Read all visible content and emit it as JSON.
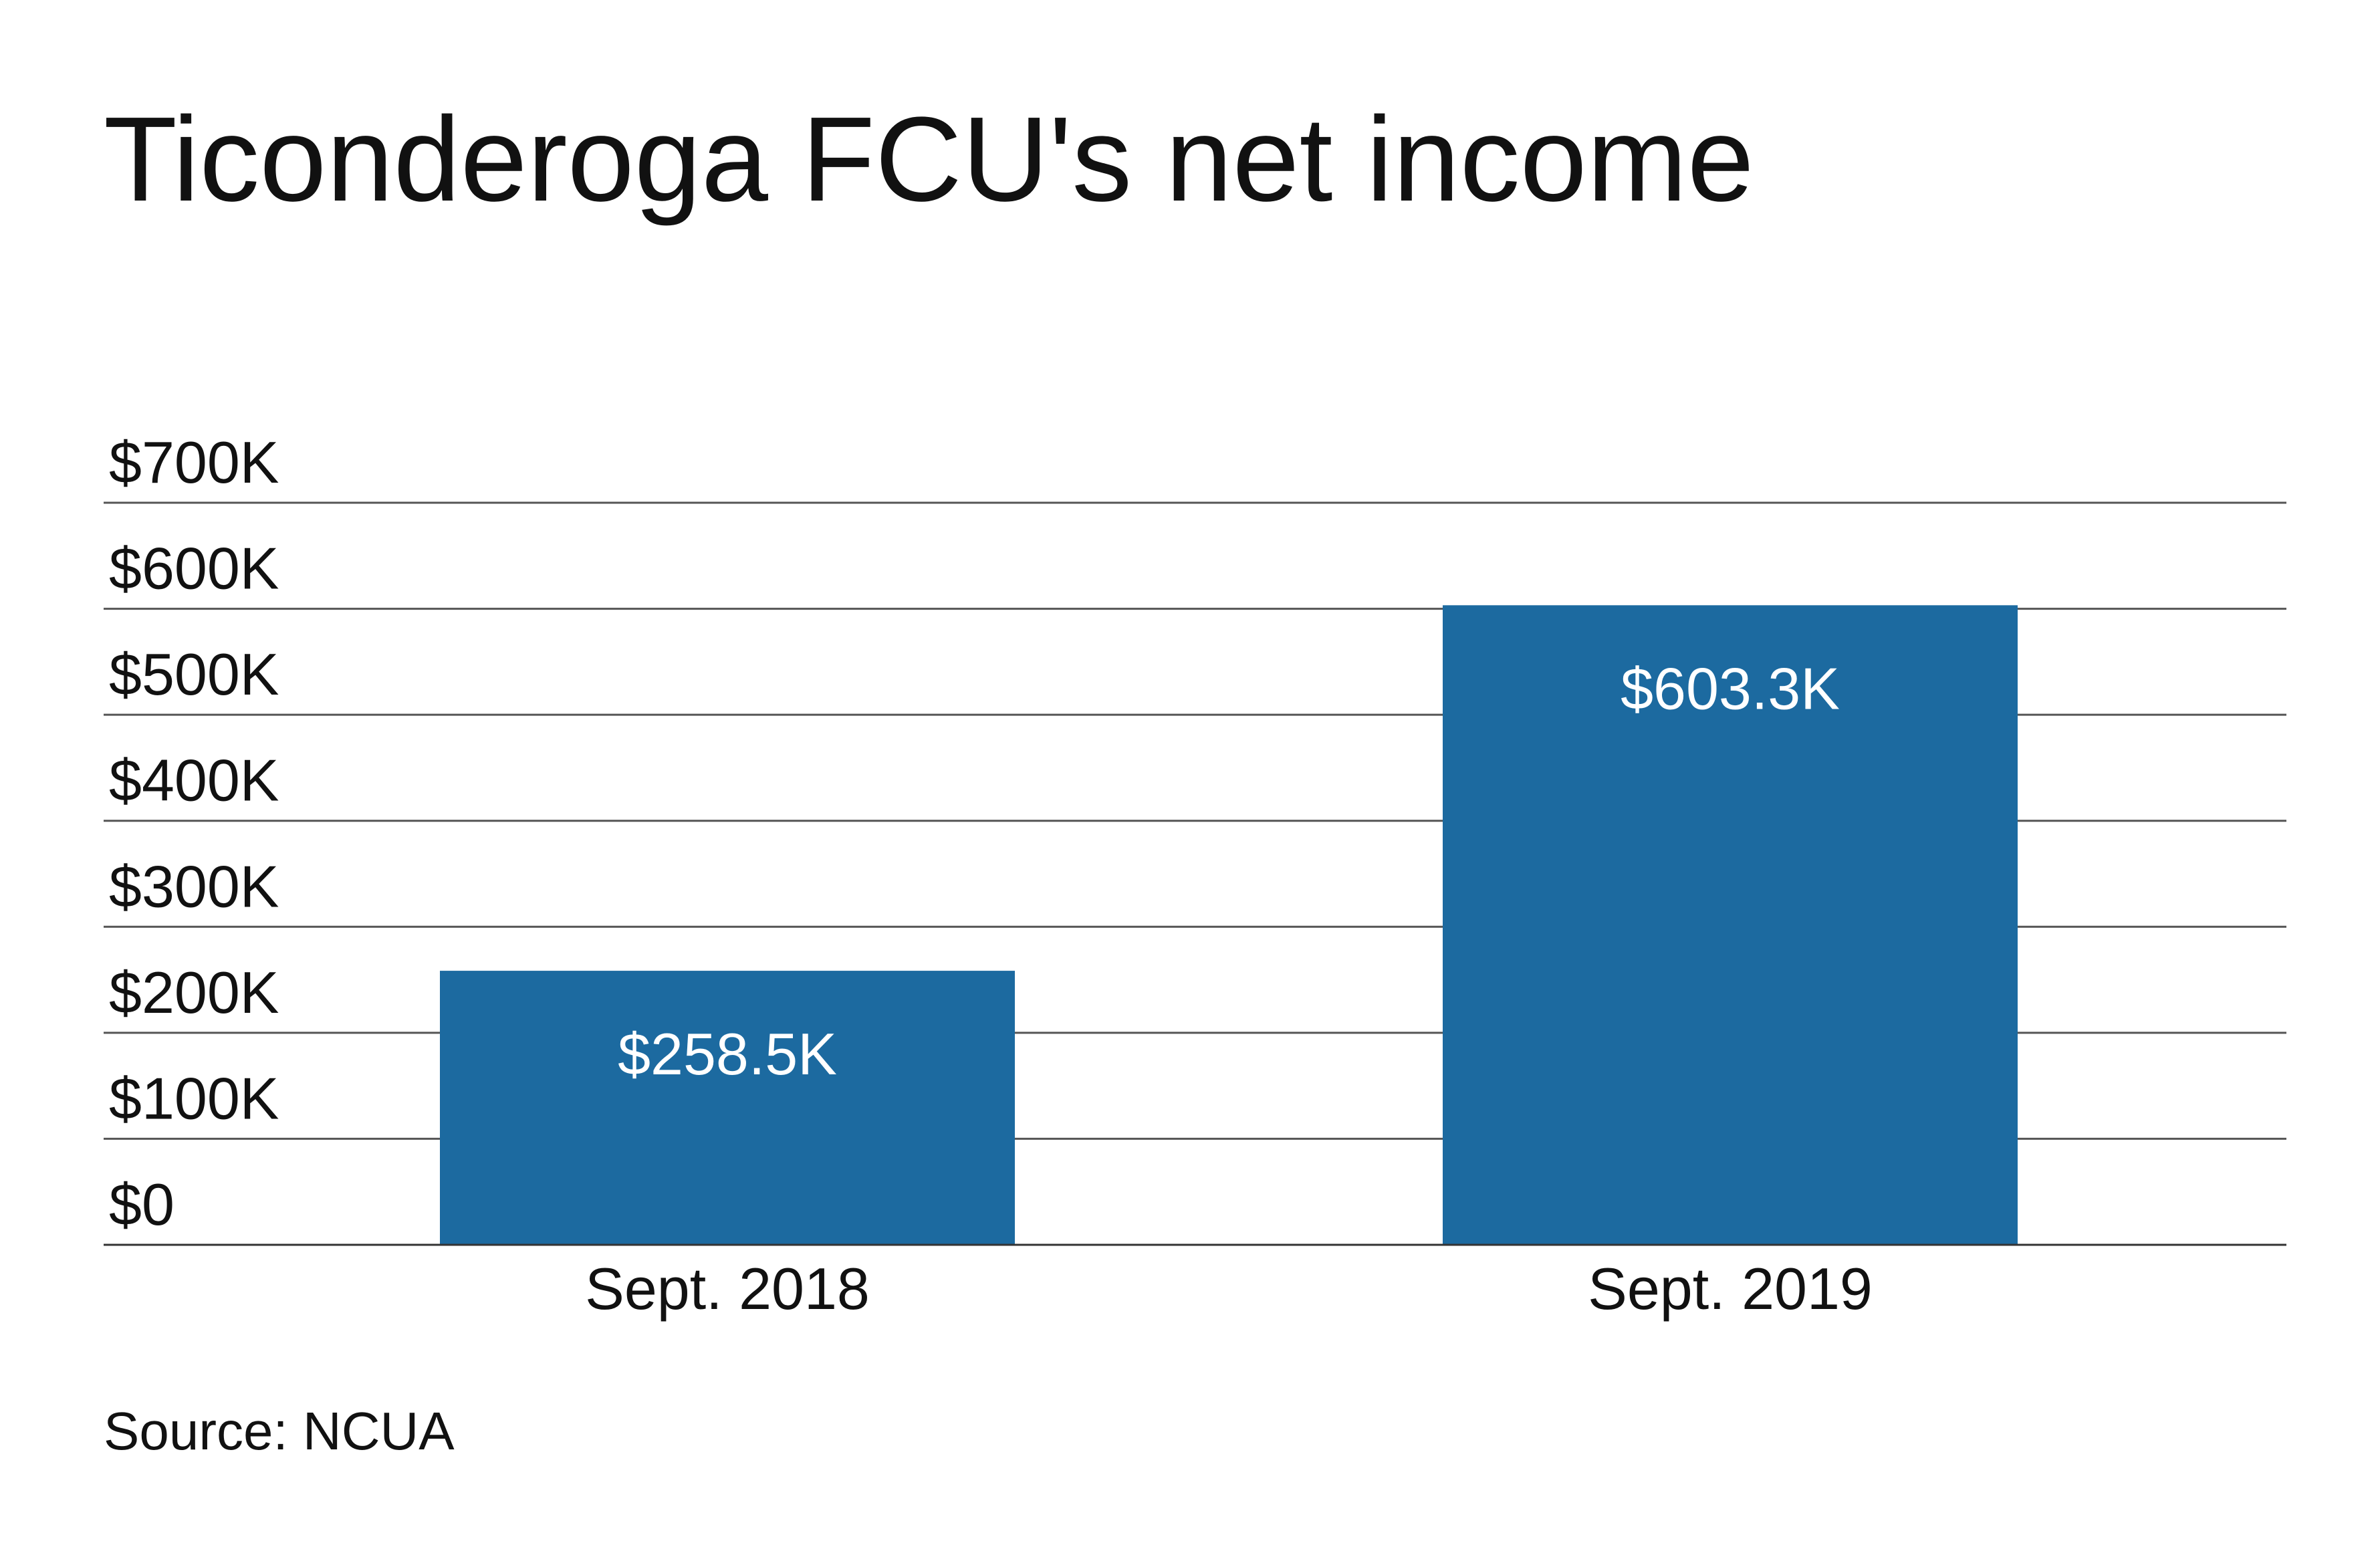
{
  "chart_data": {
    "type": "bar",
    "title": "Ticonderoga FCU's net income",
    "categories": [
      "Sept. 2018",
      "Sept. 2019"
    ],
    "values": [
      258500,
      603300
    ],
    "value_labels": [
      "$258.5K",
      "$603.3K"
    ],
    "color": "#1c6aa0",
    "ylim": [
      0,
      700000
    ],
    "yticks": [
      {
        "value": 0,
        "label": "$0"
      },
      {
        "value": 100000,
        "label": "$100K"
      },
      {
        "value": 200000,
        "label": "$200K"
      },
      {
        "value": 300000,
        "label": "$300K"
      },
      {
        "value": 400000,
        "label": "$400K"
      },
      {
        "value": 500000,
        "label": "$500K"
      },
      {
        "value": 600000,
        "label": "$600K"
      },
      {
        "value": 700000,
        "label": "$700K"
      }
    ],
    "grid": true,
    "source": "Source: NCUA"
  }
}
